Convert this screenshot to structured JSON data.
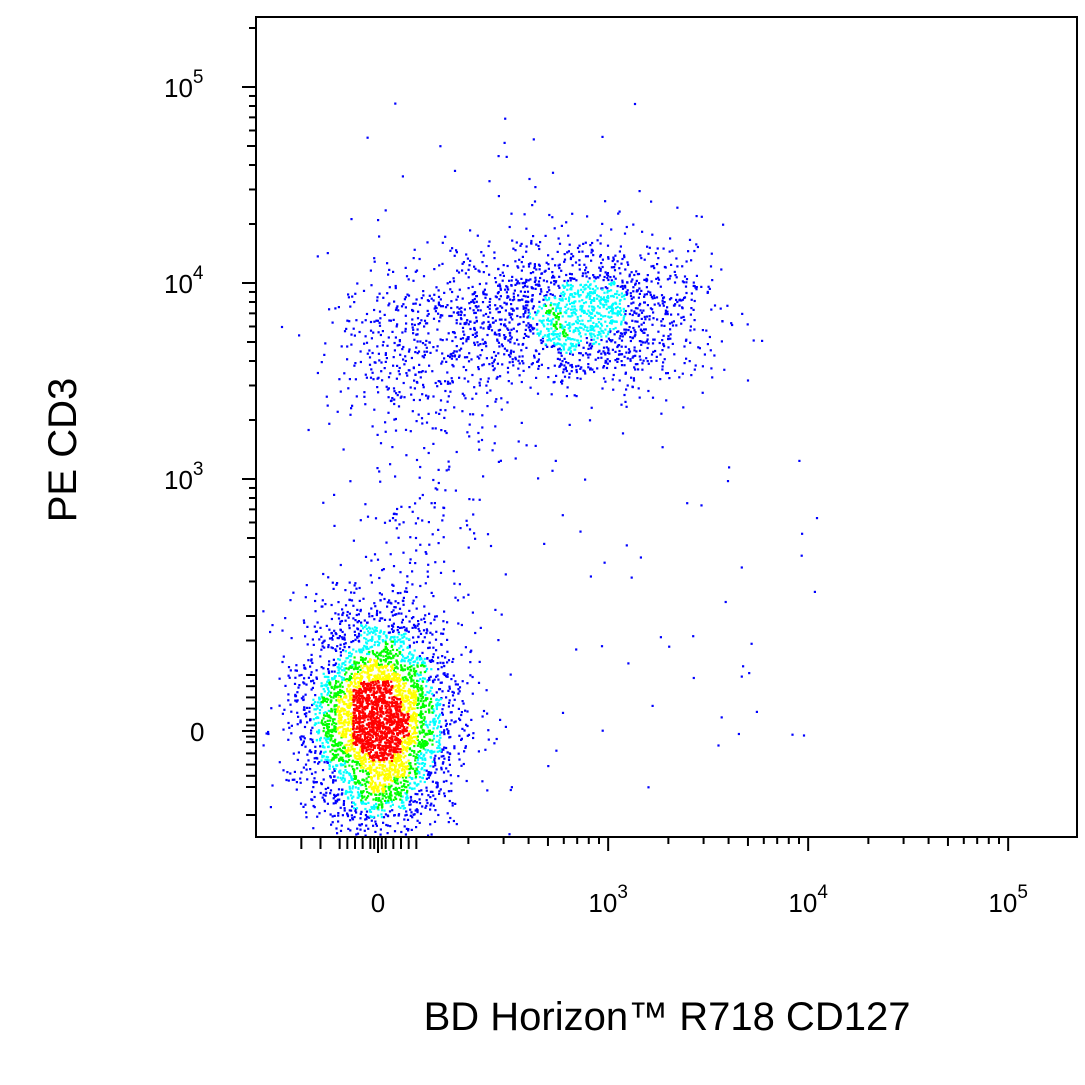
{
  "chart_data": {
    "type": "scatter",
    "subtype": "flow-cytometry-pseudocolor-density",
    "title": "",
    "xlabel": "BD Horizon™ R718 CD127",
    "ylabel": "PE CD3",
    "x_scale": "biexponential",
    "y_scale": "biexponential",
    "xlim": [
      -200,
      150000
    ],
    "ylim": [
      -150,
      250000
    ],
    "grid": false,
    "legend": "none",
    "density_colors": [
      "#0000ff",
      "#00ffff",
      "#00ff00",
      "#ffff00",
      "#ff0000"
    ],
    "x_ticks": [
      {
        "value": 0,
        "base": "0",
        "exp": ""
      },
      {
        "value": 1000,
        "base": "10",
        "exp": "3"
      },
      {
        "value": 10000,
        "base": "10",
        "exp": "4"
      },
      {
        "value": 100000,
        "base": "10",
        "exp": "5"
      }
    ],
    "y_ticks": [
      {
        "value": 0,
        "base": "0",
        "exp": ""
      },
      {
        "value": 1000,
        "base": "10",
        "exp": "3"
      },
      {
        "value": 10000,
        "base": "10",
        "exp": "4"
      },
      {
        "value": 100000,
        "base": "10",
        "exp": "5"
      }
    ],
    "populations": [
      {
        "name": "",
        "center_x": 0,
        "center_y": 20,
        "events": 4200,
        "peak_density": "high"
      },
      {
        "name": "",
        "center_x": 700,
        "center_y": 7000,
        "events": 1700,
        "peak_density": "medium"
      },
      {
        "name": "",
        "center_x": 0,
        "center_y": 5000,
        "events": 450,
        "peak_density": "low"
      }
    ]
  }
}
